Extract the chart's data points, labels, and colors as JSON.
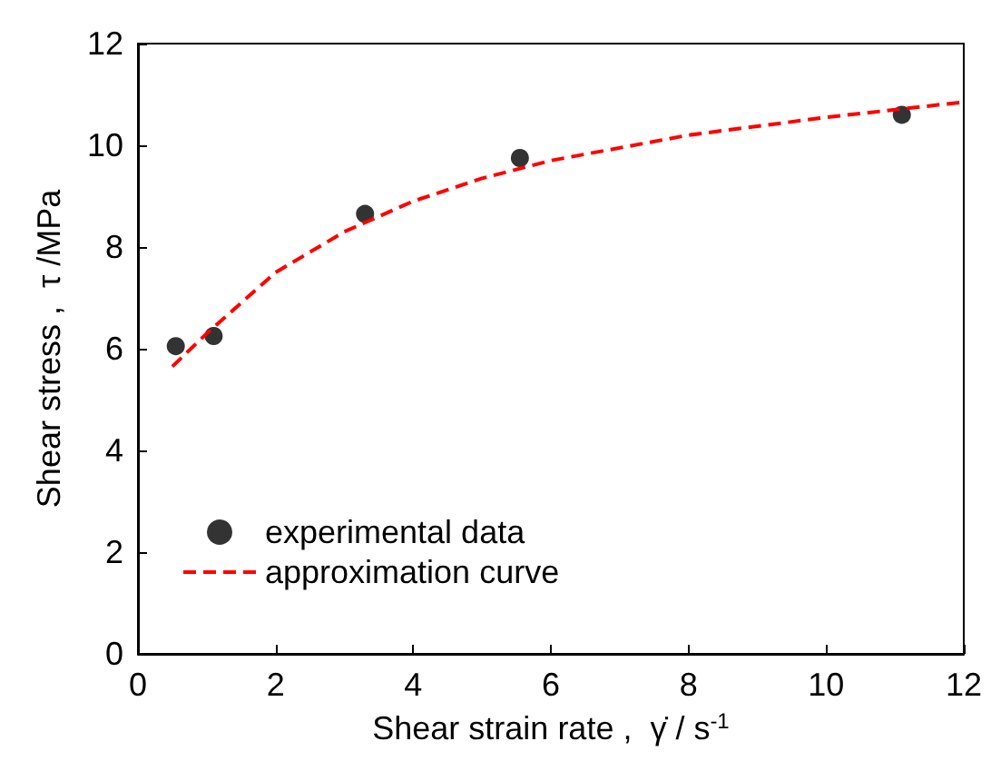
{
  "chart_data": {
    "type": "scatter",
    "xlabel": "Shear strain rate ,  γ̇ / s$^{-1}$",
    "ylabel": "Shear stress ,  τ /MPa",
    "xlim": [
      0,
      12
    ],
    "xticks": [
      0,
      2,
      4,
      6,
      8,
      10,
      12
    ],
    "ylim": [
      0,
      12
    ],
    "yticks": [
      0,
      2,
      4,
      6,
      8,
      10,
      12
    ],
    "grid": false,
    "legend": "bottom left",
    "series": [
      {
        "name": "experimental data",
        "marker": "circle",
        "color": "#000000",
        "x": [
          0.55,
          1.1,
          3.3,
          5.55,
          11.1
        ],
        "values": [
          6.05,
          6.25,
          8.65,
          9.75,
          10.6
        ]
      },
      {
        "name": "approximation curve",
        "type": "line",
        "marker": "none",
        "line_style": "dashed",
        "color": "#ff0000",
        "x": [
          0.5,
          1,
          2,
          3,
          4,
          5,
          6,
          8,
          10,
          12
        ],
        "values": [
          5.65,
          6.3,
          7.5,
          8.3,
          8.9,
          9.35,
          9.7,
          10.2,
          10.55,
          10.85
        ]
      }
    ]
  }
}
